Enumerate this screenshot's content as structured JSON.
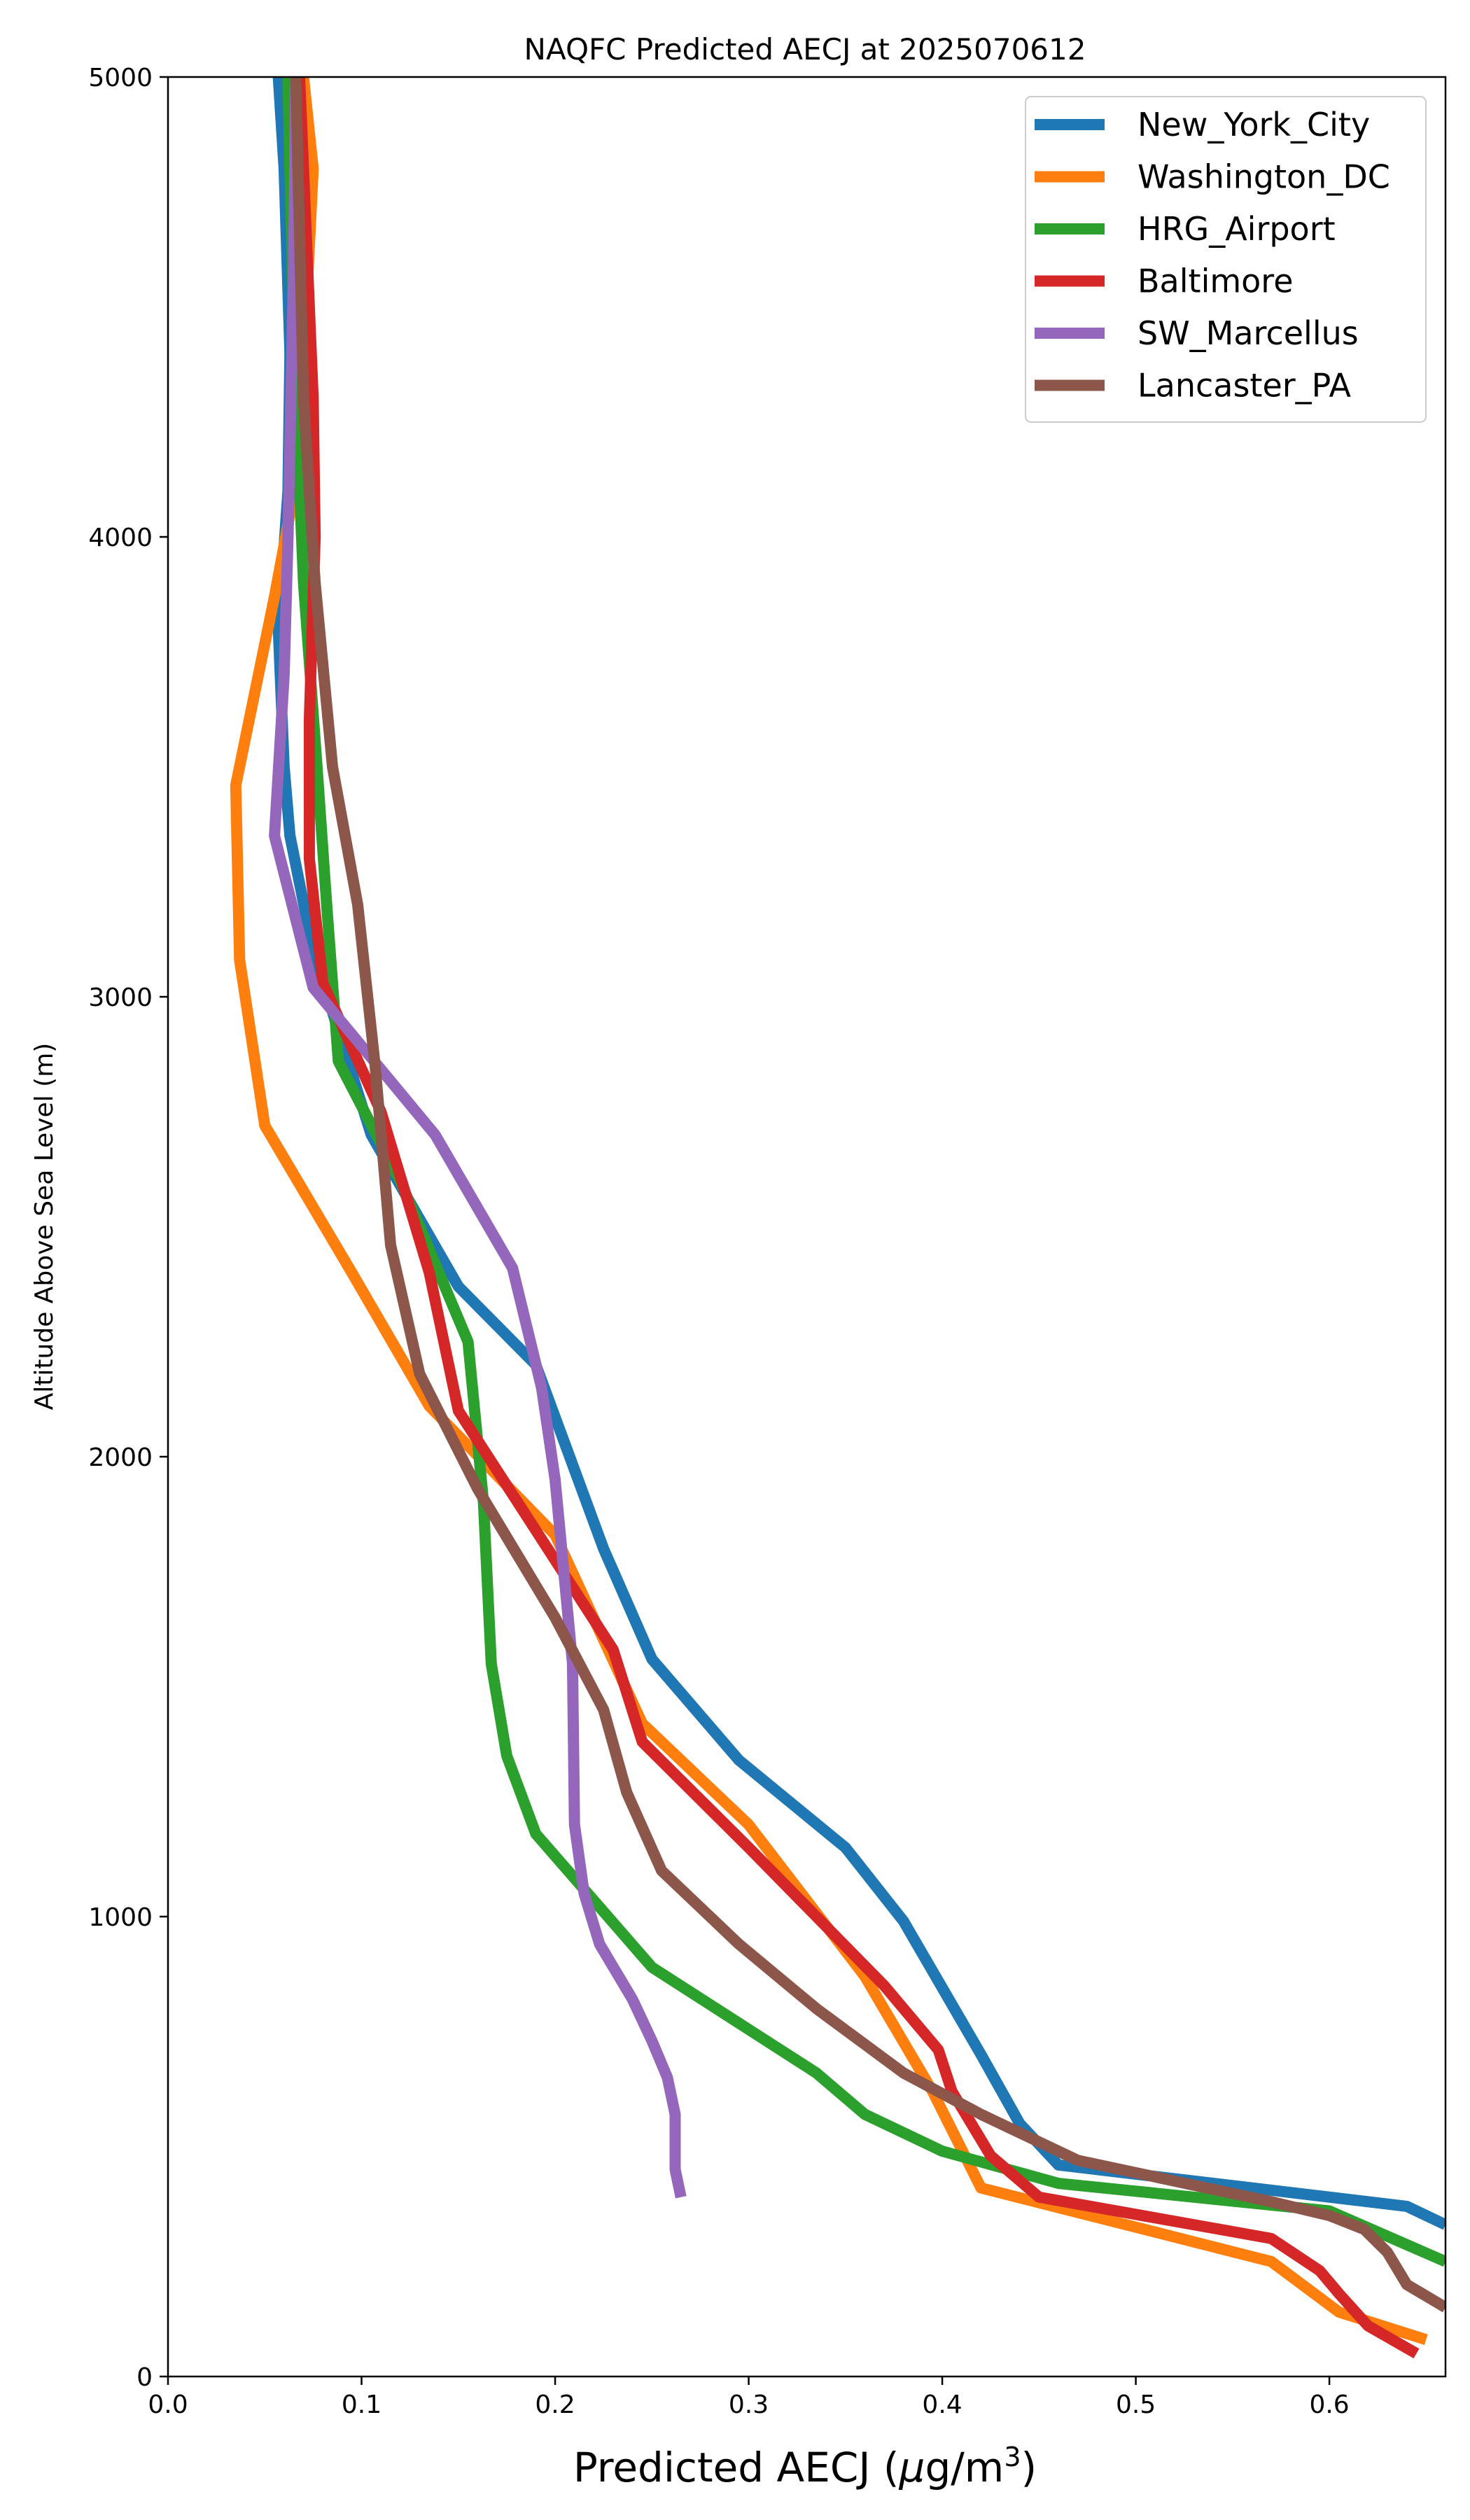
{
  "chart_data": {
    "type": "line",
    "title": "NAQFC Predicted AECJ at 2025070612",
    "xlabel_main": "Predicted AECJ (",
    "xlabel_mu": "μ",
    "xlabel_unit": "g/m",
    "xlabel_exp": "3",
    "xlabel_close": ")",
    "ylabel": "Altitude Above Sea Level (m)",
    "xlim": [
      0.0,
      0.66
    ],
    "ylim": [
      0,
      5000
    ],
    "xticks": [
      0.0,
      0.1,
      0.2,
      0.3,
      0.4,
      0.5,
      0.6
    ],
    "xtick_labels": [
      "0.0",
      "0.1",
      "0.2",
      "0.3",
      "0.4",
      "0.5",
      "0.6"
    ],
    "yticks": [
      0,
      1000,
      2000,
      3000,
      4000,
      5000
    ],
    "ytick_labels": [
      "0",
      "1000",
      "2000",
      "3000",
      "4000",
      "5000"
    ],
    "grid": false,
    "legend_position": "top-right",
    "series": [
      {
        "name": "New_York_City",
        "color": "#1f77b4",
        "points": [
          [
            0.66,
            330
          ],
          [
            0.64,
            370
          ],
          [
            0.56,
            410
          ],
          [
            0.46,
            460
          ],
          [
            0.44,
            550
          ],
          [
            0.42,
            700
          ],
          [
            0.38,
            990
          ],
          [
            0.35,
            1150
          ],
          [
            0.295,
            1340
          ],
          [
            0.25,
            1560
          ],
          [
            0.225,
            1800
          ],
          [
            0.19,
            2200
          ],
          [
            0.15,
            2370
          ],
          [
            0.105,
            2700
          ],
          [
            0.09,
            2900
          ],
          [
            0.075,
            3100
          ],
          [
            0.063,
            3350
          ],
          [
            0.06,
            3500
          ],
          [
            0.057,
            3800
          ],
          [
            0.062,
            4100
          ],
          [
            0.063,
            4400
          ],
          [
            0.06,
            4800
          ],
          [
            0.057,
            5000
          ]
        ]
      },
      {
        "name": "Washington_DC",
        "color": "#ff7f0e",
        "points": [
          [
            0.65,
            80
          ],
          [
            0.605,
            140
          ],
          [
            0.57,
            250
          ],
          [
            0.42,
            410
          ],
          [
            0.395,
            620
          ],
          [
            0.36,
            870
          ],
          [
            0.3,
            1200
          ],
          [
            0.245,
            1420
          ],
          [
            0.2,
            1830
          ],
          [
            0.135,
            2110
          ],
          [
            0.095,
            2400
          ],
          [
            0.05,
            2720
          ],
          [
            0.037,
            3080
          ],
          [
            0.035,
            3460
          ],
          [
            0.055,
            3870
          ],
          [
            0.063,
            4050
          ],
          [
            0.07,
            4380
          ],
          [
            0.075,
            4800
          ],
          [
            0.07,
            5000
          ]
        ]
      },
      {
        "name": "HRG_Airport",
        "color": "#2ca02c",
        "points": [
          [
            0.66,
            250
          ],
          [
            0.6,
            360
          ],
          [
            0.46,
            420
          ],
          [
            0.4,
            490
          ],
          [
            0.36,
            570
          ],
          [
            0.335,
            660
          ],
          [
            0.25,
            890
          ],
          [
            0.19,
            1180
          ],
          [
            0.175,
            1350
          ],
          [
            0.167,
            1550
          ],
          [
            0.163,
            1900
          ],
          [
            0.155,
            2250
          ],
          [
            0.12,
            2600
          ],
          [
            0.088,
            2860
          ],
          [
            0.082,
            3200
          ],
          [
            0.077,
            3500
          ],
          [
            0.07,
            3900
          ],
          [
            0.066,
            4300
          ],
          [
            0.063,
            4800
          ],
          [
            0.062,
            5000
          ]
        ]
      },
      {
        "name": "Baltimore",
        "color": "#d62728",
        "points": [
          [
            0.645,
            50
          ],
          [
            0.62,
            110
          ],
          [
            0.605,
            180
          ],
          [
            0.595,
            230
          ],
          [
            0.57,
            300
          ],
          [
            0.45,
            390
          ],
          [
            0.425,
            480
          ],
          [
            0.405,
            620
          ],
          [
            0.398,
            710
          ],
          [
            0.37,
            850
          ],
          [
            0.3,
            1150
          ],
          [
            0.245,
            1380
          ],
          [
            0.23,
            1580
          ],
          [
            0.15,
            2100
          ],
          [
            0.135,
            2400
          ],
          [
            0.11,
            2750
          ],
          [
            0.08,
            3030
          ],
          [
            0.073,
            3300
          ],
          [
            0.073,
            3600
          ],
          [
            0.076,
            4000
          ],
          [
            0.075,
            4300
          ],
          [
            0.072,
            4600
          ],
          [
            0.068,
            5000
          ]
        ]
      },
      {
        "name": "SW_Marcellus",
        "color": "#9467bd",
        "points": [
          [
            0.265,
            390
          ],
          [
            0.262,
            450
          ],
          [
            0.262,
            570
          ],
          [
            0.258,
            650
          ],
          [
            0.25,
            730
          ],
          [
            0.24,
            820
          ],
          [
            0.223,
            940
          ],
          [
            0.215,
            1050
          ],
          [
            0.21,
            1200
          ],
          [
            0.209,
            1550
          ],
          [
            0.2,
            1950
          ],
          [
            0.193,
            2150
          ],
          [
            0.178,
            2410
          ],
          [
            0.138,
            2700
          ],
          [
            0.075,
            3020
          ],
          [
            0.055,
            3350
          ],
          [
            0.06,
            3700
          ],
          [
            0.062,
            4000
          ],
          [
            0.065,
            4600
          ],
          [
            0.066,
            5000
          ]
        ]
      },
      {
        "name": "Lancaster_PA",
        "color": "#8c564b",
        "points": [
          [
            0.66,
            150
          ],
          [
            0.64,
            200
          ],
          [
            0.63,
            270
          ],
          [
            0.618,
            320
          ],
          [
            0.6,
            350
          ],
          [
            0.57,
            380
          ],
          [
            0.47,
            470
          ],
          [
            0.42,
            570
          ],
          [
            0.38,
            660
          ],
          [
            0.335,
            800
          ],
          [
            0.295,
            940
          ],
          [
            0.255,
            1100
          ],
          [
            0.237,
            1270
          ],
          [
            0.225,
            1450
          ],
          [
            0.2,
            1650
          ],
          [
            0.16,
            1930
          ],
          [
            0.13,
            2180
          ],
          [
            0.115,
            2460
          ],
          [
            0.107,
            2850
          ],
          [
            0.098,
            3200
          ],
          [
            0.085,
            3500
          ],
          [
            0.076,
            3900
          ],
          [
            0.07,
            4300
          ],
          [
            0.066,
            5000
          ]
        ]
      }
    ]
  }
}
